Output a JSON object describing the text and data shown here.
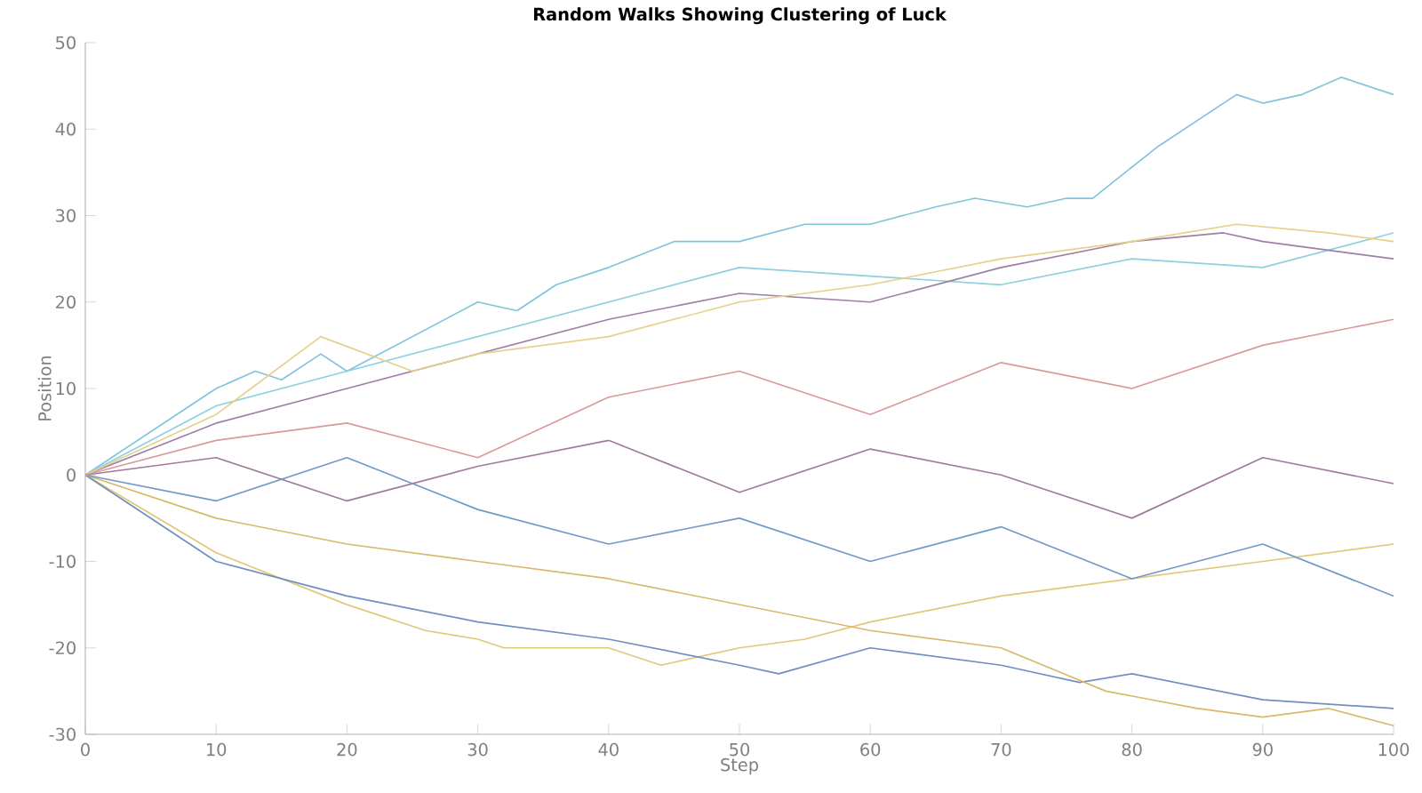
{
  "chart_data": {
    "type": "line",
    "title": "Random Walks Showing Clustering of Luck",
    "xlabel": "Step",
    "ylabel": "Position",
    "xlim": [
      0,
      100
    ],
    "xticks": [
      0,
      10,
      20,
      30,
      40,
      50,
      60,
      70,
      80,
      90,
      100
    ],
    "ylim": [
      -30,
      50
    ],
    "yticks": [
      -30,
      -20,
      -10,
      0,
      10,
      20,
      30,
      40,
      50
    ],
    "series": [
      {
        "color": "#7fc4dc",
        "x": [
          0,
          5,
          10,
          13,
          15,
          18,
          20,
          25,
          30,
          33,
          36,
          40,
          45,
          50,
          55,
          60,
          65,
          68,
          72,
          75,
          77,
          82,
          88,
          90,
          93,
          96,
          100
        ],
        "values": [
          0,
          5,
          10,
          12,
          11,
          14,
          12,
          16,
          20,
          19,
          22,
          24,
          27,
          27,
          29,
          29,
          31,
          32,
          31,
          32,
          32,
          38,
          44,
          43,
          44,
          46,
          44
        ]
      },
      {
        "color": "#8fcfe0",
        "x": [
          0,
          10,
          20,
          30,
          40,
          50,
          60,
          70,
          80,
          90,
          100
        ],
        "values": [
          0,
          8,
          12,
          16,
          20,
          24,
          23,
          22,
          25,
          24,
          28
        ]
      },
      {
        "color": "#e2c77a",
        "x": [
          0,
          10,
          20,
          26,
          30,
          32,
          36,
          40,
          44,
          50,
          55,
          60,
          70,
          80,
          90,
          100
        ],
        "values": [
          0,
          -9,
          -15,
          -18,
          -19,
          -20,
          -20,
          -20,
          -22,
          -20,
          -19,
          -17,
          -14,
          -12,
          -10,
          -8
        ]
      },
      {
        "color": "#6f8fbf",
        "x": [
          0,
          10,
          20,
          30,
          40,
          50,
          53,
          60,
          70,
          76,
          80,
          90,
          100
        ],
        "values": [
          0,
          -10,
          -14,
          -17,
          -19,
          -22,
          -23,
          -20,
          -22,
          -24,
          -23,
          -26,
          -27
        ]
      },
      {
        "color": "#d9b86a",
        "x": [
          0,
          10,
          20,
          30,
          40,
          50,
          60,
          70,
          78,
          85,
          90,
          95,
          100
        ],
        "values": [
          0,
          -5,
          -8,
          -10,
          -12,
          -15,
          -18,
          -20,
          -25,
          -27,
          -28,
          -27,
          -29
        ]
      },
      {
        "color": "#9c7fa6",
        "x": [
          0,
          10,
          20,
          30,
          40,
          50,
          60,
          70,
          80,
          87,
          90,
          100
        ],
        "values": [
          0,
          6,
          10,
          14,
          18,
          21,
          20,
          24,
          27,
          28,
          27,
          25
        ]
      },
      {
        "color": "#e6d08a",
        "x": [
          0,
          10,
          18,
          25,
          30,
          40,
          50,
          60,
          70,
          80,
          88,
          95,
          100
        ],
        "values": [
          0,
          7,
          16,
          12,
          14,
          16,
          20,
          22,
          25,
          27,
          29,
          28,
          27
        ]
      },
      {
        "color": "#a07a9c",
        "x": [
          0,
          10,
          20,
          30,
          40,
          50,
          60,
          70,
          80,
          90,
          100
        ],
        "values": [
          0,
          2,
          -3,
          1,
          4,
          -2,
          3,
          0,
          -5,
          2,
          -1
        ]
      },
      {
        "color": "#6f9ac6",
        "x": [
          0,
          10,
          20,
          30,
          40,
          50,
          60,
          70,
          80,
          90,
          100
        ],
        "values": [
          0,
          -3,
          2,
          -4,
          -8,
          -5,
          -10,
          -6,
          -12,
          -8,
          -14
        ]
      },
      {
        "color": "#d89a9a",
        "x": [
          0,
          10,
          20,
          30,
          40,
          50,
          60,
          70,
          80,
          90,
          100
        ],
        "values": [
          0,
          4,
          6,
          2,
          9,
          12,
          7,
          13,
          10,
          15,
          18
        ]
      }
    ]
  }
}
